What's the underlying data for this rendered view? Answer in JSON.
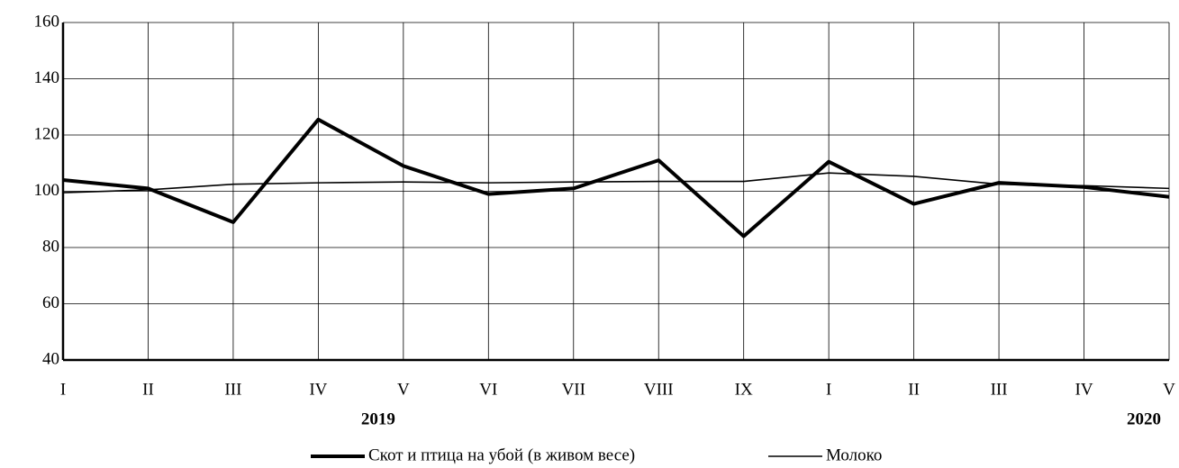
{
  "chart_data": {
    "type": "line",
    "categories": [
      "I",
      "II",
      "III",
      "IV",
      "V",
      "VI",
      "VII",
      "VIII",
      "IX",
      "I",
      "II",
      "III",
      "IV",
      "V"
    ],
    "annotations": [
      "2019",
      "2020"
    ],
    "series": [
      {
        "name": "Скот и птица на убой (в живом весе)",
        "color": "#000000",
        "width": 4,
        "values": [
          104,
          101,
          89,
          125.5,
          109,
          99,
          101,
          111,
          84,
          110.5,
          95.5,
          103,
          101.5,
          98
        ]
      },
      {
        "name": "Молоко",
        "color": "#000000",
        "width": 1.6,
        "values": [
          99.5,
          100.5,
          102.5,
          103,
          103.3,
          103,
          103.3,
          103.5,
          103.5,
          106.5,
          105.3,
          102.5,
          102,
          101
        ]
      }
    ],
    "ylim": [
      40,
      160
    ],
    "yticks": [
      40,
      60,
      80,
      100,
      120,
      140,
      160
    ],
    "grid": true
  }
}
